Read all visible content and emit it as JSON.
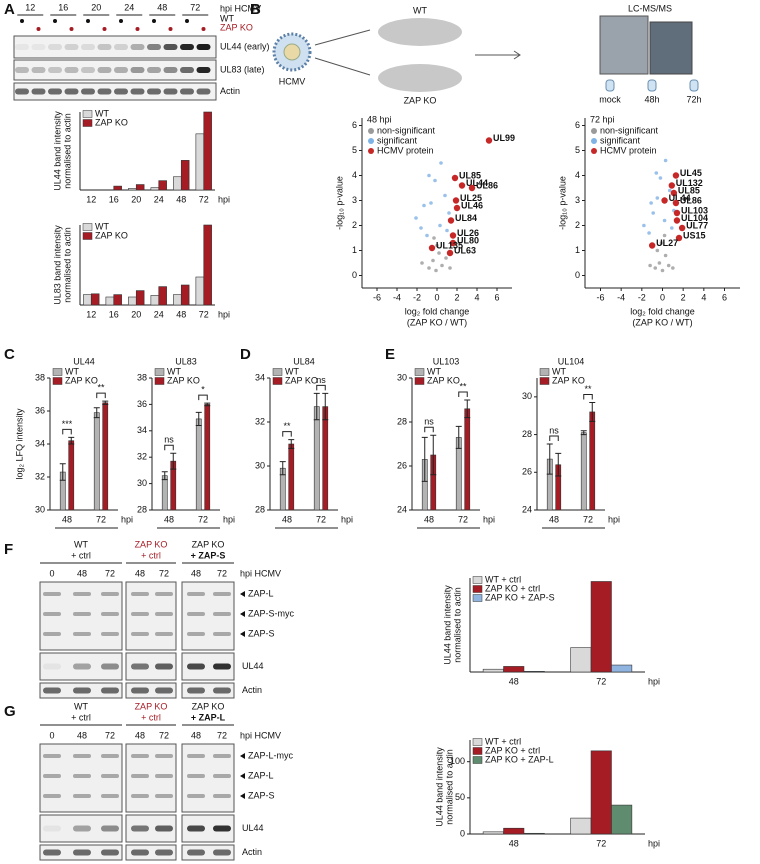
{
  "panel_labels": [
    "A",
    "B",
    "C",
    "D",
    "E",
    "F",
    "G"
  ],
  "blot_a": {
    "header": "hpi HCMV",
    "timepoints": [
      "12",
      "16",
      "20",
      "24",
      "48",
      "72"
    ],
    "genotypes": [
      "WT",
      "ZAP KO"
    ],
    "bands": [
      "UL44 (early)",
      "UL83 (late)",
      "Actin"
    ]
  },
  "schematic": {
    "virus": "HCMV",
    "wt": "WT",
    "ko": "ZAP KO",
    "instrument": "LC-MS/MS",
    "samples": [
      "mock",
      "48h",
      "72h"
    ]
  },
  "blot_f": {
    "groups": [
      [
        "WT",
        "+ ctrl"
      ],
      [
        "ZAP KO",
        "+ ctrl"
      ],
      [
        "ZAP KO",
        "+ ZAP-S"
      ]
    ],
    "lanes": [
      "0",
      "48",
      "72",
      "48",
      "72",
      "48",
      "72"
    ],
    "header": "hpi HCMV",
    "bands": [
      "ZAP-L",
      "ZAP-S-myc",
      "ZAP-S"
    ],
    "rows": [
      "UL44",
      "Actin"
    ]
  },
  "blot_g": {
    "groups": [
      [
        "WT",
        "+ ctrl"
      ],
      [
        "ZAP KO",
        "+ ctrl"
      ],
      [
        "ZAP KO",
        "+ ZAP-L"
      ]
    ],
    "lanes": [
      "0",
      "48",
      "72",
      "48",
      "72",
      "48",
      "72"
    ],
    "header": "hpi HCMV",
    "bands": [
      "ZAP-L-myc",
      "ZAP-L",
      "ZAP-S"
    ],
    "rows": [
      "UL44",
      "Actin"
    ]
  },
  "chart_data": [
    {
      "type": "bar",
      "ylabel": [
        "UL44 band intensity",
        "normalised to actin"
      ],
      "categories": [
        "12",
        "16",
        "20",
        "24",
        "48",
        "72"
      ],
      "x_unit": "hpi",
      "ylim": [
        0,
        100
      ],
      "series": [
        {
          "name": "WT",
          "color": "#d9d9d9",
          "values": [
            0,
            0,
            2,
            3,
            17,
            72
          ]
        },
        {
          "name": "ZAP KO",
          "color": "#a51c24",
          "values": [
            0,
            5,
            7,
            12,
            38,
            100
          ]
        }
      ]
    },
    {
      "type": "bar",
      "ylabel": [
        "UL83 band intensity",
        "normalised to actin"
      ],
      "categories": [
        "12",
        "16",
        "20",
        "24",
        "48",
        "72"
      ],
      "x_unit": "hpi",
      "ylim": [
        0,
        100
      ],
      "series": [
        {
          "name": "WT",
          "color": "#d9d9d9",
          "values": [
            13,
            10,
            10,
            12,
            13,
            35
          ]
        },
        {
          "name": "ZAP KO",
          "color": "#a51c24",
          "values": [
            14,
            13,
            18,
            23,
            25,
            100
          ]
        }
      ]
    },
    {
      "type": "scatter",
      "title": "48 hpi",
      "xlabel": [
        "log₂ fold change",
        "(ZAP KO / WT)"
      ],
      "ylabel": "-log₁₀ p-value",
      "xlim": [
        -7.5,
        7.5
      ],
      "xticks": [
        -6,
        -4,
        -2,
        0,
        2,
        4,
        6
      ],
      "ylim": [
        -0.5,
        6.3
      ],
      "yticks": [
        0,
        1,
        2,
        3,
        4,
        5,
        6
      ],
      "series": [
        {
          "name": "non-significant",
          "color": "#9a9a9a",
          "x": [
            -0.8,
            -0.4,
            -0.1,
            0.2,
            0.5,
            0.9,
            -1.5,
            1.3,
            0.0,
            -0.3
          ],
          "y": [
            0.3,
            0.6,
            0.2,
            0.9,
            0.4,
            0.7,
            0.5,
            0.3,
            1.2,
            1.5
          ]
        },
        {
          "name": "significant",
          "color": "#7fb2e5",
          "x": [
            -2.1,
            -1.6,
            -1.0,
            -0.6,
            -0.2,
            0.4,
            0.8,
            1.2,
            -1.3,
            0.3,
            -0.8,
            1.0
          ],
          "y": [
            2.3,
            1.9,
            1.6,
            2.9,
            3.8,
            4.5,
            3.2,
            2.5,
            2.8,
            2.0,
            4.0,
            1.8
          ]
        },
        {
          "name": "HCMV protein",
          "color": "#c62828",
          "x": [
            5.2,
            1.8,
            2.5,
            3.5,
            1.9,
            2.0,
            1.4,
            1.6,
            1.6,
            1.3,
            -0.5
          ],
          "y": [
            5.4,
            3.9,
            3.6,
            3.5,
            3.0,
            2.7,
            2.2,
            1.6,
            1.3,
            0.9,
            1.1
          ],
          "labels": [
            "UL99",
            "UL85",
            "UL44",
            "UL86",
            "UL25",
            "UL46",
            "UL84",
            "UL26",
            "UL80",
            "UL63",
            "UL135"
          ]
        }
      ]
    },
    {
      "type": "scatter",
      "title": "72 hpi",
      "xlabel": [
        "log₂ fold change",
        "(ZAP KO / WT)"
      ],
      "ylabel": "-log₁₀ p-value",
      "xlim": [
        -7.5,
        7.5
      ],
      "xticks": [
        -6,
        -4,
        -2,
        0,
        2,
        4,
        6
      ],
      "ylim": [
        -0.5,
        6.3
      ],
      "yticks": [
        0,
        1,
        2,
        3,
        4,
        5,
        6
      ],
      "series": [
        {
          "name": "non-significant",
          "color": "#9a9a9a",
          "x": [
            -0.7,
            -0.3,
            0.0,
            0.3,
            0.6,
            -1.2,
            1.0,
            -0.1,
            0.2,
            -0.5
          ],
          "y": [
            0.3,
            0.5,
            0.2,
            0.8,
            0.4,
            0.4,
            0.3,
            1.3,
            1.6,
            1.0
          ]
        },
        {
          "name": "significant",
          "color": "#7fb2e5",
          "x": [
            -1.8,
            -1.3,
            -0.9,
            -0.5,
            -0.2,
            0.3,
            0.7,
            1.1,
            -1.1,
            0.2,
            -0.6,
            0.9
          ],
          "y": [
            2.0,
            1.7,
            2.5,
            3.1,
            3.9,
            4.6,
            3.4,
            2.6,
            2.9,
            2.2,
            4.1,
            1.9
          ]
        },
        {
          "name": "HCMV protein",
          "color": "#c62828",
          "x": [
            1.3,
            0.9,
            1.1,
            0.2,
            1.3,
            1.4,
            1.4,
            1.9,
            1.6,
            -1.0
          ],
          "y": [
            4.0,
            3.6,
            3.3,
            3.0,
            2.9,
            2.5,
            2.2,
            1.9,
            1.5,
            1.2
          ],
          "labels": [
            "UL45",
            "UL132",
            "UL85",
            "UL44",
            "UL86",
            "UL103",
            "UL104",
            "UL77",
            "US15",
            "UL27"
          ]
        }
      ]
    },
    {
      "type": "bar",
      "title": "UL44",
      "ylabel": "log₂ LFQ intensity",
      "categories": [
        "48",
        "72"
      ],
      "x_unit": "hpi",
      "ylim": [
        30,
        38
      ],
      "yticks": [
        30,
        32,
        34,
        36,
        38
      ],
      "significance": [
        "***",
        "**"
      ],
      "series": [
        {
          "name": "WT",
          "color": "#b3b3b3",
          "values": [
            32.3,
            35.9
          ],
          "errors": [
            0.5,
            0.3
          ]
        },
        {
          "name": "ZAP KO",
          "color": "#a51c24",
          "values": [
            34.2,
            36.5
          ],
          "errors": [
            0.2,
            0.1
          ]
        }
      ]
    },
    {
      "type": "bar",
      "title": "UL83",
      "categories": [
        "48",
        "72"
      ],
      "x_unit": "hpi",
      "ylim": [
        28,
        38
      ],
      "yticks": [
        28,
        30,
        32,
        34,
        36,
        38
      ],
      "significance": [
        "ns",
        "*"
      ],
      "series": [
        {
          "name": "WT",
          "color": "#b3b3b3",
          "values": [
            30.6,
            34.9
          ],
          "errors": [
            0.3,
            0.5
          ]
        },
        {
          "name": "ZAP KO",
          "color": "#a51c24",
          "values": [
            31.7,
            36.0
          ],
          "errors": [
            0.6,
            0.1
          ]
        }
      ]
    },
    {
      "type": "bar",
      "title": "UL84",
      "categories": [
        "48",
        "72"
      ],
      "x_unit": "hpi",
      "ylim": [
        28,
        34
      ],
      "yticks": [
        28,
        30,
        32,
        34
      ],
      "significance": [
        "**",
        "ns"
      ],
      "series": [
        {
          "name": "WT",
          "color": "#b3b3b3",
          "values": [
            29.9,
            32.7
          ],
          "errors": [
            0.3,
            0.6
          ]
        },
        {
          "name": "ZAP KO",
          "color": "#a51c24",
          "values": [
            31.0,
            32.7
          ],
          "errors": [
            0.2,
            0.6
          ]
        }
      ]
    },
    {
      "type": "bar",
      "title": "UL103",
      "categories": [
        "48",
        "72"
      ],
      "x_unit": "hpi",
      "ylim": [
        24,
        30
      ],
      "yticks": [
        24,
        26,
        28,
        30
      ],
      "significance": [
        "ns",
        "**"
      ],
      "series": [
        {
          "name": "WT",
          "color": "#b3b3b3",
          "values": [
            26.3,
            27.3
          ],
          "errors": [
            1.0,
            0.5
          ]
        },
        {
          "name": "ZAP KO",
          "color": "#a51c24",
          "values": [
            26.5,
            28.6
          ],
          "errors": [
            0.9,
            0.4
          ]
        }
      ]
    },
    {
      "type": "bar",
      "title": "UL104",
      "categories": [
        "48",
        "72"
      ],
      "x_unit": "hpi",
      "ylim": [
        24,
        31
      ],
      "yticks": [
        24,
        26,
        28,
        30
      ],
      "significance": [
        "ns",
        "**"
      ],
      "series": [
        {
          "name": "WT",
          "color": "#b3b3b3",
          "values": [
            26.7,
            28.1
          ],
          "errors": [
            0.8,
            0.1
          ]
        },
        {
          "name": "ZAP KO",
          "color": "#a51c24",
          "values": [
            26.4,
            29.2
          ],
          "errors": [
            0.6,
            0.5
          ]
        }
      ]
    },
    {
      "type": "bar",
      "ylabel": [
        "UL44 band intensity",
        "normalised to actin"
      ],
      "categories": [
        "48",
        "72"
      ],
      "x_unit": "hpi",
      "ylim": [
        0,
        135
      ],
      "series": [
        {
          "name": "WT + ctrl",
          "color": "#d9d9d9",
          "values": [
            4,
            35
          ]
        },
        {
          "name": "ZAP KO + ctrl",
          "color": "#a51c24",
          "values": [
            8,
            130
          ]
        },
        {
          "name": "ZAP KO + ZAP-S",
          "color": "#8fb4e0",
          "values": [
            1,
            10
          ]
        }
      ]
    },
    {
      "type": "bar",
      "ylabel": [
        "UL44 band intensity",
        "normalised to actin"
      ],
      "categories": [
        "48",
        "72"
      ],
      "x_unit": "hpi",
      "ylim": [
        0,
        130
      ],
      "yticks": [
        0,
        50,
        100
      ],
      "series": [
        {
          "name": "WT + ctrl",
          "color": "#d9d9d9",
          "values": [
            3,
            22
          ]
        },
        {
          "name": "ZAP KO + ctrl",
          "color": "#a51c24",
          "values": [
            8,
            115
          ]
        },
        {
          "name": "ZAP KO + ZAP-L",
          "color": "#5f8c6e",
          "values": [
            1,
            40
          ]
        }
      ]
    }
  ]
}
